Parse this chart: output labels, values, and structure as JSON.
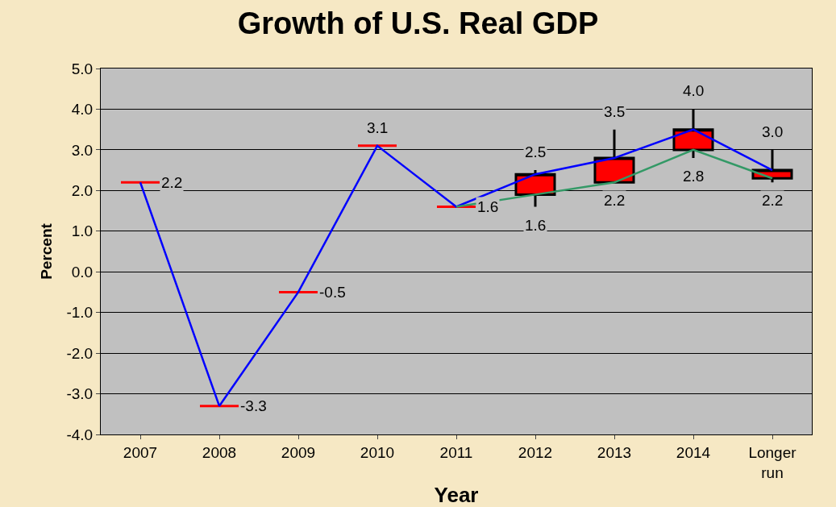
{
  "chart_data": {
    "type": "candlestick",
    "title": "Growth of U.S. Real GDP",
    "xlabel": "Year",
    "ylabel": "Percent",
    "categories": [
      "2007",
      "2008",
      "2009",
      "2010",
      "2011",
      "2012",
      "2013",
      "2014",
      "Longer run"
    ],
    "ohlc": [
      [
        2.2,
        2.2,
        2.2,
        2.2
      ],
      [
        -3.3,
        -3.3,
        -3.3,
        -3.3
      ],
      [
        -0.5,
        -0.5,
        -0.5,
        -0.5
      ],
      [
        3.1,
        3.1,
        3.1,
        3.1
      ],
      [
        1.6,
        1.6,
        1.6,
        1.6
      ],
      [
        1.9,
        2.5,
        1.6,
        2.4
      ],
      [
        2.2,
        3.5,
        2.2,
        2.8
      ],
      [
        3.0,
        4.0,
        2.8,
        3.5
      ],
      [
        2.3,
        3.0,
        2.2,
        2.5
      ]
    ],
    "color": "#ff0000",
    "series": [
      {
        "type": "line",
        "color": "#0000ff",
        "values": [
          2.2,
          -3.3,
          -0.5,
          3.1,
          1.6,
          2.4,
          2.8,
          3.5,
          2.5
        ]
      },
      {
        "type": "line",
        "color": "#339966",
        "values": [
          null,
          null,
          null,
          null,
          1.6,
          1.9,
          2.2,
          3.0,
          2.3
        ]
      }
    ],
    "ylim": [
      -4,
      5
    ],
    "yticks": [
      {
        "value": -4,
        "label": "-4.0"
      },
      {
        "value": -3,
        "label": "-3.0"
      },
      {
        "value": -2,
        "label": "-2.0"
      },
      {
        "value": -1,
        "label": "-1.0"
      },
      {
        "value": 0,
        "label": "0.0"
      },
      {
        "value": 1,
        "label": "1.0"
      },
      {
        "value": 2,
        "label": "2.0"
      },
      {
        "value": 3,
        "label": "3.0"
      },
      {
        "value": 4,
        "label": "4.0"
      },
      {
        "value": 5,
        "label": "5.0"
      }
    ],
    "grid": "y",
    "marker": "none",
    "line_style": "solid",
    "annotations": [
      {
        "text": "2.2",
        "x": "2007",
        "y": 2.2
      },
      {
        "text": "-3.3",
        "x": "2008",
        "y": -3.3
      },
      {
        "text": "-0.5",
        "x": "2009",
        "y": -0.5
      },
      {
        "text": "3.1",
        "x": "2010",
        "y": 3.1
      },
      {
        "text": "1.6",
        "x": "2011",
        "y": 1.6
      },
      {
        "text": "2.5",
        "x": "2012",
        "y": 2.5
      },
      {
        "text": "1.6",
        "x": "2012",
        "y": 1.6
      },
      {
        "text": "3.5",
        "x": "2013",
        "y": 3.5
      },
      {
        "text": "2.2",
        "x": "2013",
        "y": 2.2
      },
      {
        "text": "4.0",
        "x": "2014",
        "y": 4.0
      },
      {
        "text": "2.8",
        "x": "2014",
        "y": 2.8
      },
      {
        "text": "3.0",
        "x": "Longer run",
        "y": 3.0
      },
      {
        "text": "2.2",
        "x": "Longer run",
        "y": 2.2
      }
    ]
  }
}
